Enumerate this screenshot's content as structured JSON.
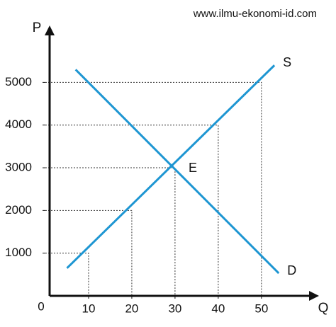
{
  "chart_data": {
    "type": "line",
    "watermark": "www.ilmu-ekonomi-id.com",
    "x_label": "Q",
    "y_label": "P",
    "origin_label": "0",
    "annotation": "E",
    "xlim": [
      0,
      62
    ],
    "ylim": [
      0,
      6200
    ],
    "xticks": [
      10,
      20,
      30,
      40,
      50
    ],
    "yticks": [
      1000,
      2000,
      3000,
      4000,
      5000
    ],
    "series": [
      {
        "name": "S",
        "color": "#1e96d2",
        "x": [
          5,
          53
        ],
        "values": [
          650,
          5400
        ]
      },
      {
        "name": "D",
        "color": "#1e96d2",
        "x": [
          7,
          54
        ],
        "values": [
          5300,
          530
        ]
      }
    ]
  }
}
